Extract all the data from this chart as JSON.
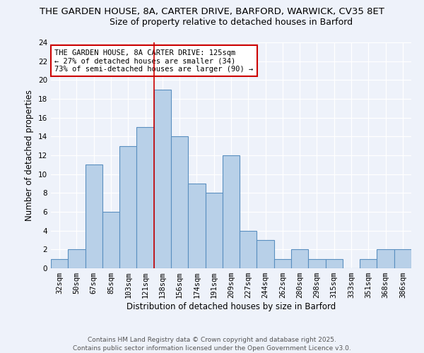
{
  "title_line1": "THE GARDEN HOUSE, 8A, CARTER DRIVE, BARFORD, WARWICK, CV35 8ET",
  "title_line2": "Size of property relative to detached houses in Barford",
  "xlabel": "Distribution of detached houses by size in Barford",
  "ylabel": "Number of detached properties",
  "categories": [
    "32sqm",
    "50sqm",
    "67sqm",
    "85sqm",
    "103sqm",
    "121sqm",
    "138sqm",
    "156sqm",
    "174sqm",
    "191sqm",
    "209sqm",
    "227sqm",
    "244sqm",
    "262sqm",
    "280sqm",
    "298sqm",
    "315sqm",
    "333sqm",
    "351sqm",
    "368sqm",
    "386sqm"
  ],
  "values": [
    1,
    2,
    11,
    6,
    13,
    15,
    19,
    14,
    9,
    8,
    12,
    4,
    3,
    1,
    2,
    1,
    1,
    0,
    1,
    2,
    2
  ],
  "bar_color": "#b8d0e8",
  "bar_edge_color": "#5a8fc0",
  "highlight_index": 5,
  "highlight_line_color": "#cc0000",
  "annotation_text": "THE GARDEN HOUSE, 8A CARTER DRIVE: 125sqm\n← 27% of detached houses are smaller (34)\n73% of semi-detached houses are larger (90) →",
  "annotation_box_color": "#ffffff",
  "annotation_border_color": "#cc0000",
  "ylim": [
    0,
    24
  ],
  "yticks": [
    0,
    2,
    4,
    6,
    8,
    10,
    12,
    14,
    16,
    18,
    20,
    22,
    24
  ],
  "background_color": "#eef2fa",
  "footer_text": "Contains HM Land Registry data © Crown copyright and database right 2025.\nContains public sector information licensed under the Open Government Licence v3.0.",
  "title_fontsize": 9.5,
  "subtitle_fontsize": 9,
  "axis_label_fontsize": 8.5,
  "tick_fontsize": 7.5,
  "annotation_fontsize": 7.5,
  "footer_fontsize": 6.5
}
